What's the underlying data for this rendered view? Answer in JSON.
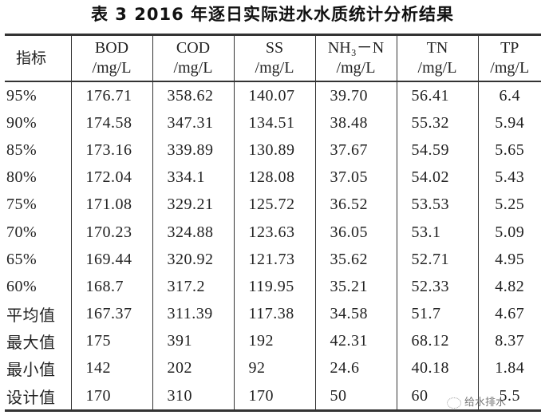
{
  "title": "表 3   2016 年逐日实际进水水质统计分析结果",
  "header": {
    "first": "指标",
    "columns": [
      {
        "name": "BOD",
        "unit": "/mg/L"
      },
      {
        "name": "COD",
        "unit": "/mg/L"
      },
      {
        "name": "SS",
        "unit": "/mg/L"
      },
      {
        "name": "NH₃－N",
        "unit": "/mg/L"
      },
      {
        "name": "TN",
        "unit": "/mg/L"
      },
      {
        "name": "TP",
        "unit": "/mg/L"
      }
    ]
  },
  "rows": [
    [
      "95%",
      "176.71",
      "358.62",
      "140.07",
      "39.70",
      "56.41",
      "6.4"
    ],
    [
      "90%",
      "174.58",
      "347.31",
      "134.51",
      "38.48",
      "55.32",
      "5.94"
    ],
    [
      "85%",
      "173.16",
      "339.89",
      "130.89",
      "37.67",
      "54.59",
      "5.65"
    ],
    [
      "80%",
      "172.04",
      "334.1",
      "128.08",
      "37.05",
      "54.02",
      "5.43"
    ],
    [
      "75%",
      "171.08",
      "329.21",
      "125.72",
      "36.52",
      "53.53",
      "5.25"
    ],
    [
      "70%",
      "170.23",
      "324.88",
      "123.63",
      "36.05",
      "53.1",
      "5.09"
    ],
    [
      "65%",
      "169.44",
      "320.92",
      "121.73",
      "35.62",
      "52.71",
      "4.95"
    ],
    [
      "60%",
      "168.7",
      "317.2",
      "119.95",
      "35.21",
      "52.33",
      "4.82"
    ],
    [
      "平均值",
      "167.37",
      "311.39",
      "117.38",
      "34.58",
      "51.7",
      "4.67"
    ],
    [
      "最大值",
      "175",
      "391",
      "192",
      "42.31",
      "68.12",
      "8.37"
    ],
    [
      "最小值",
      "142",
      "202",
      "92",
      "24.6",
      "40.18",
      "1.84"
    ],
    [
      "设计值",
      "170",
      "310",
      "170",
      "50",
      "60",
      "5.5"
    ]
  ],
  "watermark": "给水排水"
}
